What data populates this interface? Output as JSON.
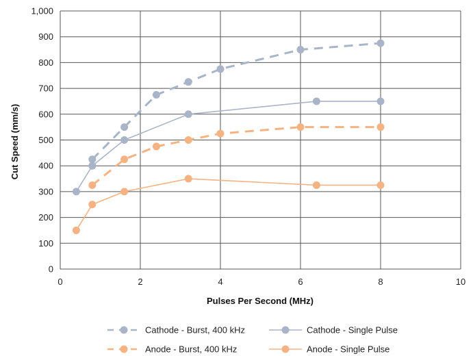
{
  "chart_data": {
    "type": "line",
    "title": "",
    "xlabel": "Pulses Per Second (MHz)",
    "ylabel": "Cut Speed (mm/s)",
    "xlim": [
      0,
      10
    ],
    "ylim": [
      0,
      1000
    ],
    "xticks": [
      0,
      2,
      4,
      6,
      8,
      10
    ],
    "xtick_labels": [
      "0",
      "2",
      "4",
      "6",
      "8",
      "10"
    ],
    "yticks": [
      0,
      100,
      200,
      300,
      400,
      500,
      600,
      700,
      800,
      900,
      1000
    ],
    "ytick_labels": [
      "0",
      "100",
      "200",
      "300",
      "400",
      "500",
      "600",
      "700",
      "800",
      "900",
      "1,000"
    ],
    "grid": true,
    "legend_position": "bottom",
    "series": [
      {
        "name": "Cathode - Burst, 400 kHz",
        "color": "#a9b4c8",
        "dashed": true,
        "points": [
          [
            0.8,
            425
          ],
          [
            1.6,
            550
          ],
          [
            2.4,
            675
          ],
          [
            3.2,
            725
          ],
          [
            4.0,
            775
          ],
          [
            6.0,
            850
          ],
          [
            8.0,
            875
          ]
        ]
      },
      {
        "name": "Cathode - Single Pulse",
        "color": "#a9b4c8",
        "dashed": false,
        "points": [
          [
            0.4,
            300
          ],
          [
            0.8,
            400
          ],
          [
            1.6,
            500
          ],
          [
            3.2,
            600
          ],
          [
            6.4,
            650
          ],
          [
            8.0,
            650
          ]
        ]
      },
      {
        "name": "Anode - Burst, 400 kHz",
        "color": "#f5b383",
        "dashed": true,
        "points": [
          [
            0.8,
            325
          ],
          [
            1.6,
            425
          ],
          [
            2.4,
            475
          ],
          [
            3.2,
            500
          ],
          [
            4.0,
            525
          ],
          [
            6.0,
            550
          ],
          [
            8.0,
            550
          ]
        ]
      },
      {
        "name": "Anode - Single Pulse",
        "color": "#f5b383",
        "dashed": false,
        "points": [
          [
            0.4,
            150
          ],
          [
            0.8,
            250
          ],
          [
            1.6,
            300
          ],
          [
            3.2,
            350
          ],
          [
            6.4,
            325
          ],
          [
            8.0,
            325
          ]
        ]
      }
    ]
  }
}
